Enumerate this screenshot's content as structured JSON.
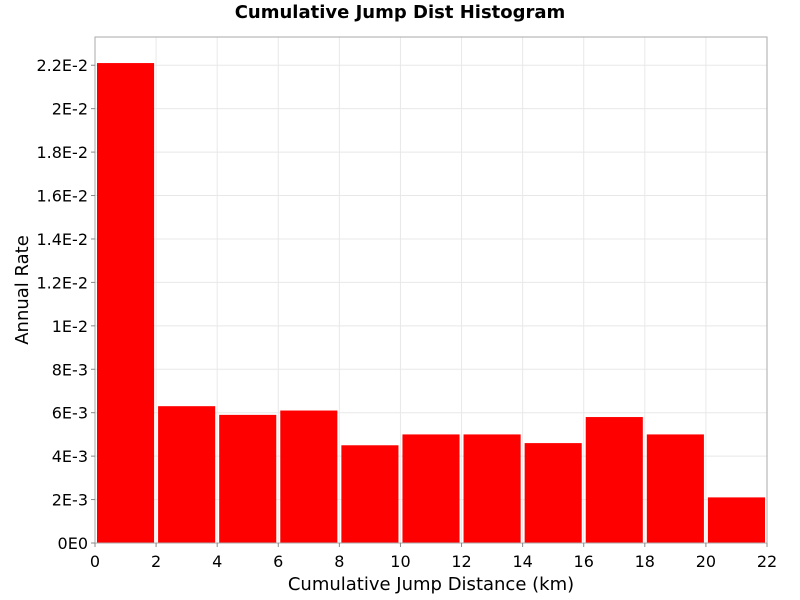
{
  "chart_data": {
    "type": "bar",
    "title": "Cumulative Jump Dist Histogram",
    "xlabel": "Cumulative Jump Distance (km)",
    "ylabel": "Annual Rate",
    "xlim": [
      0,
      22
    ],
    "ylim": [
      0,
      0.0233
    ],
    "x_ticks": [
      0,
      2,
      4,
      6,
      8,
      10,
      12,
      14,
      16,
      18,
      20,
      22
    ],
    "x_tick_labels": [
      "0",
      "2",
      "4",
      "6",
      "8",
      "10",
      "12",
      "14",
      "16",
      "18",
      "20",
      "22"
    ],
    "y_ticks": [
      0,
      0.002,
      0.004,
      0.006,
      0.008,
      0.01,
      0.012,
      0.014,
      0.016,
      0.018,
      0.02,
      0.022
    ],
    "y_tick_labels": [
      "0E0",
      "2E-3",
      "4E-3",
      "6E-3",
      "8E-3",
      "1E-2",
      "1.2E-2",
      "1.4E-2",
      "1.6E-2",
      "1.8E-2",
      "2E-2",
      "2.2E-2"
    ],
    "grid": true,
    "bar_color": "#ff0000",
    "bins": [
      {
        "x0": 0,
        "x1": 2,
        "value": 0.0221
      },
      {
        "x0": 2,
        "x1": 4,
        "value": 0.0063
      },
      {
        "x0": 4,
        "x1": 6,
        "value": 0.0059
      },
      {
        "x0": 6,
        "x1": 8,
        "value": 0.0061
      },
      {
        "x0": 8,
        "x1": 10,
        "value": 0.0045
      },
      {
        "x0": 10,
        "x1": 12,
        "value": 0.005
      },
      {
        "x0": 12,
        "x1": 14,
        "value": 0.005
      },
      {
        "x0": 14,
        "x1": 16,
        "value": 0.0046
      },
      {
        "x0": 16,
        "x1": 18,
        "value": 0.0058
      },
      {
        "x0": 18,
        "x1": 20,
        "value": 0.005
      },
      {
        "x0": 20,
        "x1": 22,
        "value": 0.0021
      }
    ]
  }
}
